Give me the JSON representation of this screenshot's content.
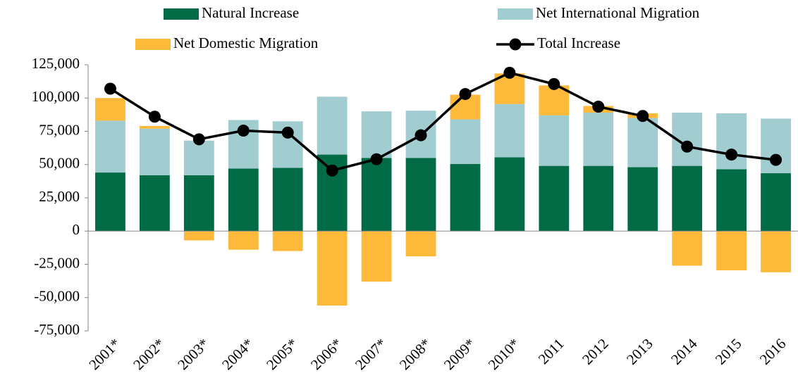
{
  "chart_data": {
    "type": "bar",
    "categories": [
      "2001*",
      "2002*",
      "2003*",
      "2004*",
      "2005*",
      "2006*",
      "2007*",
      "2008*",
      "2009*",
      "2010*",
      "2011",
      "2012",
      "2013",
      "2014",
      "2015",
      "2016"
    ],
    "series": [
      {
        "name": "Natural Increase",
        "color": "#006b45",
        "values": [
          44000,
          42000,
          42000,
          47000,
          47500,
          57500,
          55000,
          55000,
          50500,
          55500,
          49000,
          49000,
          48000,
          49000,
          46500,
          43500
        ]
      },
      {
        "name": "Net International Migration",
        "color": "#a2cdd0",
        "values": [
          39000,
          35000,
          26000,
          36500,
          35000,
          43500,
          35000,
          35500,
          33500,
          40000,
          38000,
          40000,
          37000,
          40000,
          42000,
          41000
        ]
      },
      {
        "name": "Net Domestic Migration",
        "color": "#fdb93a",
        "values": [
          17000,
          2000,
          -7000,
          -14000,
          -15000,
          -56000,
          -38000,
          -19000,
          18500,
          23000,
          22500,
          5000,
          3500,
          -26000,
          -29500,
          -31000
        ]
      },
      {
        "name": "Total Increase",
        "color": "#000000",
        "type": "line",
        "values": [
          107000,
          86000,
          69000,
          75500,
          74000,
          45500,
          54000,
          72000,
          103000,
          119000,
          110500,
          93500,
          86500,
          63500,
          57500,
          53500
        ]
      }
    ],
    "ylim": [
      -75000,
      125000
    ],
    "yticks": [
      {
        "value": -75000,
        "label": "-75,000"
      },
      {
        "value": -50000,
        "label": "-50,000"
      },
      {
        "value": -25000,
        "label": "-25,000"
      },
      0,
      {
        "value": 25000,
        "label": "25,000"
      },
      {
        "value": 50000,
        "label": "50,000"
      },
      {
        "value": 75000,
        "label": "75,000"
      },
      {
        "value": 100000,
        "label": "100,000"
      },
      {
        "value": 125000,
        "label": "125,000"
      }
    ]
  }
}
